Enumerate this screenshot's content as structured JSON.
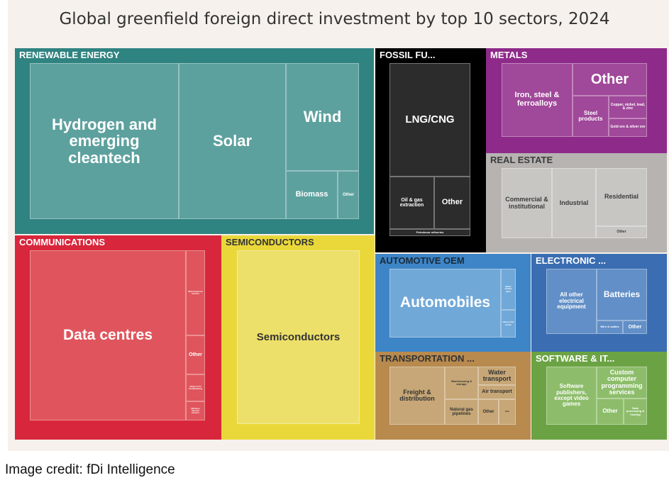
{
  "title": "Global greenfield foreign direct investment by top 10 sectors, 2024",
  "credit": "Image credit: fDi Intelligence",
  "chart_data": {
    "type": "treemap",
    "title": "Global greenfield foreign direct investment by top 10 sectors, 2024",
    "sectors": [
      {
        "id": "renewable",
        "label": "RENEWABLE ENERGY",
        "color": "#2f8381",
        "tile_color": "#5da19e",
        "text_color": "#ffffff",
        "tiles": [
          {
            "id": "hydrogen",
            "label": "Hydrogen and emerging cleantech"
          },
          {
            "id": "solar",
            "label": "Solar"
          },
          {
            "id": "wind",
            "label": "Wind"
          },
          {
            "id": "biomass",
            "label": "Biomass"
          },
          {
            "id": "other",
            "label": "Other"
          }
        ]
      },
      {
        "id": "fossil",
        "label": "FOSSIL FU...",
        "color": "#000000",
        "tile_color": "#2c2c2c",
        "text_color": "#ffffff",
        "tiles": [
          {
            "id": "lng",
            "label": "LNG/CNG"
          },
          {
            "id": "oilgas",
            "label": "Oil & gas extraction"
          },
          {
            "id": "other",
            "label": "Other"
          },
          {
            "id": "small",
            "label": "Petroleum refineries"
          }
        ]
      },
      {
        "id": "metals",
        "label": "METALS",
        "color": "#8e2a8a",
        "tile_color": "#a0489a",
        "text_color": "#ffffff",
        "tiles": [
          {
            "id": "iron",
            "label": "Iron, steel & ferroalloys"
          },
          {
            "id": "other",
            "label": "Other"
          },
          {
            "id": "steel",
            "label": "Steel products"
          },
          {
            "id": "copper",
            "label": "Copper, nickel, lead, & zinc"
          },
          {
            "id": "gold",
            "label": "Gold ore & silver ore"
          }
        ]
      },
      {
        "id": "realestate",
        "label": "REAL ESTATE",
        "color": "#b6b3b1",
        "tile_color": "#c8c6c3",
        "text_color": "#3c3c3c",
        "tiles": [
          {
            "id": "commercial",
            "label": "Commercial & institutional"
          },
          {
            "id": "industrial",
            "label": "Industrial"
          },
          {
            "id": "residential",
            "label": "Residential"
          },
          {
            "id": "other",
            "label": "Other"
          }
        ]
      },
      {
        "id": "communications",
        "label": "COMMUNICATIONS",
        "color": "#d8263c",
        "tile_color": "#e0555d",
        "text_color": "#ffffff",
        "tiles": [
          {
            "id": "datacentres",
            "label": "Data centres"
          },
          {
            "id": "s1",
            "label": "Wired telecom carriers"
          },
          {
            "id": "other",
            "label": "Other"
          },
          {
            "id": "s2",
            "label": "Radio & TV broadcasting"
          },
          {
            "id": "s3",
            "label": "Wireless telecom carriers"
          }
        ]
      },
      {
        "id": "semiconductors",
        "label": "SEMICONDUCTORS",
        "color": "#ead83a",
        "tile_color": "#ede06a",
        "text_color": "#333333",
        "tiles": [
          {
            "id": "semis",
            "label": "Semiconductors"
          }
        ]
      },
      {
        "id": "automotive",
        "label": "AUTOMOTIVE OEM",
        "color": "#3d85c6",
        "tile_color": "#70a8d8",
        "text_color": "#ffffff",
        "header_text_color": "#1a2a3a",
        "tiles": [
          {
            "id": "automobiles",
            "label": "Automobiles"
          },
          {
            "id": "a1",
            "label": "Motor vehicle parts"
          },
          {
            "id": "a2",
            "label": "Heavy duty trucks"
          }
        ]
      },
      {
        "id": "electronic",
        "label": "ELECTRONIC ...",
        "color": "#3a6db2",
        "tile_color": "#628fc7",
        "text_color": "#ffffff",
        "tiles": [
          {
            "id": "allother",
            "label": "All other electrical equipment"
          },
          {
            "id": "batteries",
            "label": "Batteries"
          },
          {
            "id": "wires",
            "label": "Wire & cables"
          },
          {
            "id": "other",
            "label": "Other"
          }
        ]
      },
      {
        "id": "transportation",
        "label": "TRANSPORTATION ...",
        "color": "#b88a4e",
        "tile_color": "#c7a777",
        "text_color": "#333333",
        "tiles": [
          {
            "id": "freight",
            "label": "Freight & distribution"
          },
          {
            "id": "warehousing",
            "label": "Warehousing & storage"
          },
          {
            "id": "water",
            "label": "Water transport"
          },
          {
            "id": "air",
            "label": "Air transport"
          },
          {
            "id": "gas",
            "label": "Natural gas pipelines"
          },
          {
            "id": "other",
            "label": "Other"
          },
          {
            "id": "tiny",
            "label": "Rail"
          }
        ]
      },
      {
        "id": "software",
        "label": "SOFTWARE & IT...",
        "color": "#6ba344",
        "tile_color": "#8dbd6a",
        "text_color": "#ffffff",
        "tiles": [
          {
            "id": "publishers",
            "label": "Software publishers, except video games"
          },
          {
            "id": "custom",
            "label": "Custom computer programming services"
          },
          {
            "id": "other",
            "label": "Other"
          },
          {
            "id": "small",
            "label": "Data processing & hosting"
          }
        ]
      }
    ]
  }
}
